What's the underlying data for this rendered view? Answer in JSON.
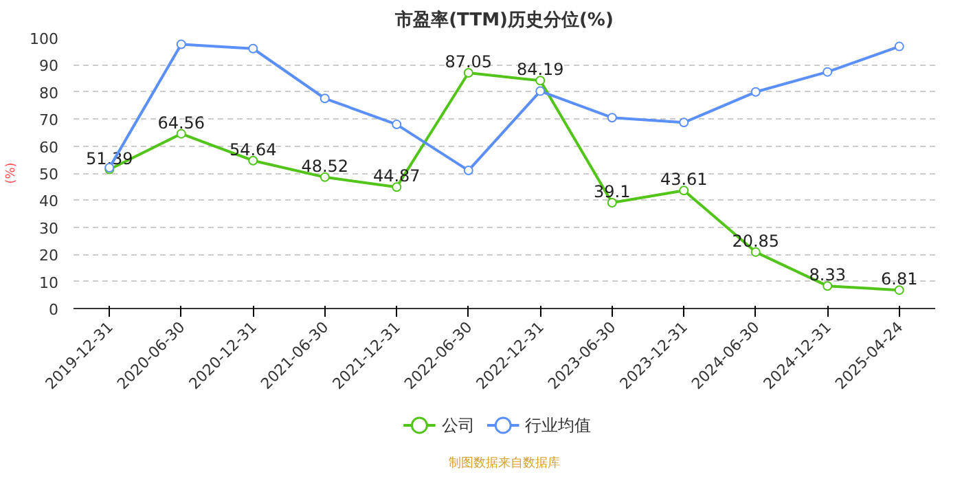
{
  "chart_data": {
    "type": "line",
    "title": "市盈率(TTM)历史分位(%)",
    "ylabel": "(%)",
    "categories": [
      "2019-12-31",
      "2020-06-30",
      "2020-12-31",
      "2021-06-30",
      "2021-12-31",
      "2022-06-30",
      "2022-12-31",
      "2023-06-30",
      "2023-12-31",
      "2024-06-30",
      "2024-12-31",
      "2025-04-24"
    ],
    "series": [
      {
        "name": "公司",
        "color": "#52c41a",
        "values": [
          51.39,
          64.56,
          54.64,
          48.52,
          44.87,
          87.05,
          84.19,
          39.1,
          43.61,
          20.85,
          8.33,
          6.81
        ],
        "data_labels": true
      },
      {
        "name": "行业均值",
        "color": "#5b8ff9",
        "values": [
          52,
          97.6,
          96,
          77.6,
          68,
          51,
          80.3,
          70.5,
          68.7,
          80,
          87.4,
          96.8
        ]
      }
    ],
    "ylim": [
      0,
      100
    ],
    "yticks": [
      0,
      10,
      20,
      30,
      40,
      50,
      60,
      70,
      80,
      90,
      100
    ],
    "grid": "y",
    "legend": "bottom",
    "marker": "circle",
    "line_style": "solid",
    "annotations": [
      "制图数据来自数据库"
    ]
  }
}
